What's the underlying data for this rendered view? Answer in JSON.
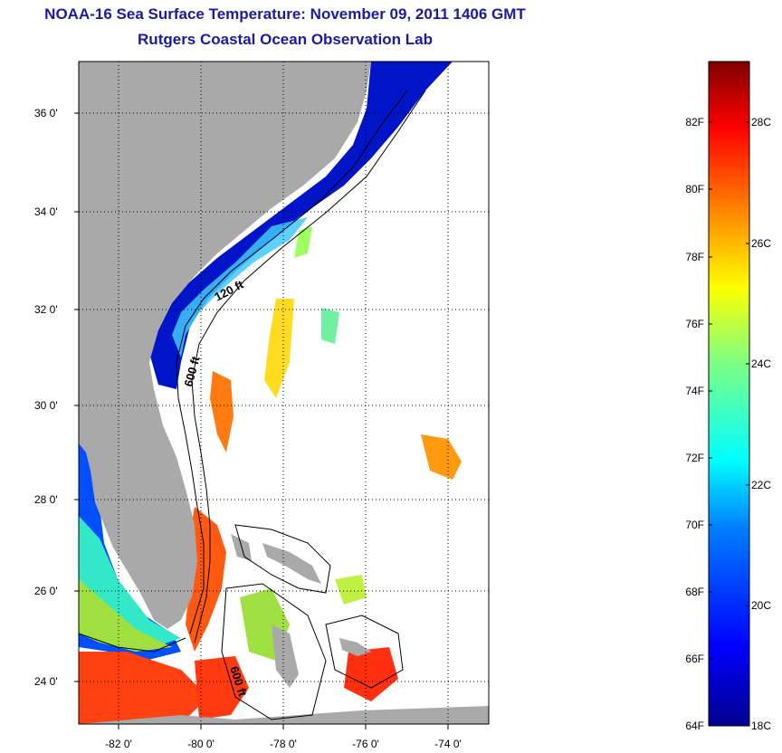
{
  "title": {
    "line1": "NOAA-16 Sea Surface Temperature:  November 09, 2011 1406 GMT",
    "line2": "Rutgers Coastal Ocean Observation Lab"
  },
  "map": {
    "lat_labels": [
      "36 0'",
      "34 0'",
      "32 0'",
      "30 0'",
      "28 0'",
      "26 0'",
      "24 0'"
    ],
    "lon_labels": [
      "-82 0'",
      "-80 0'",
      "-78 0'",
      "-76 0'",
      "-74 0'"
    ],
    "isobath_labels": [
      "120 ft",
      "600 ft",
      "600 ft"
    ],
    "colors": {
      "land": "#a9a9a9",
      "frame": "#000000"
    }
  },
  "colorbar": {
    "fahrenheit_labels": [
      "82F",
      "80F",
      "78F",
      "76F",
      "74F",
      "72F",
      "70F",
      "68F",
      "66F",
      "64F"
    ],
    "celsius_labels": [
      "28C",
      "26C",
      "24C",
      "22C",
      "20C",
      "18C"
    ],
    "colormap": [
      "#00008f",
      "#0000ff",
      "#0080ff",
      "#00ffff",
      "#80ff80",
      "#ffff00",
      "#ff8000",
      "#ff0000",
      "#800000"
    ]
  }
}
